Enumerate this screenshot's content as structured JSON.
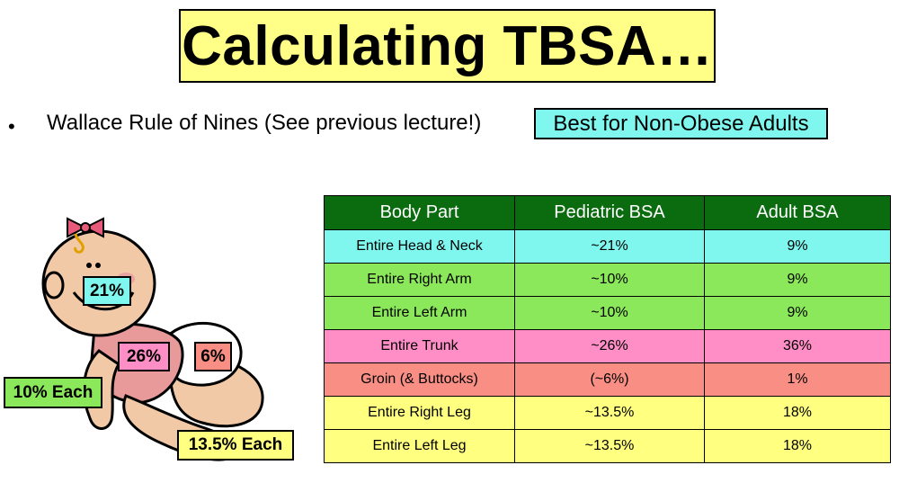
{
  "title": "Calculating TBSA…",
  "bullet": {
    "marker": "•",
    "text": "Wallace Rule of Nines (See previous lecture!)",
    "callout": "Best for Non-Obese Adults"
  },
  "figure": {
    "labels": {
      "head": "21%",
      "trunk": "26%",
      "groin": "6%",
      "arms": "10% Each",
      "legs": "13.5% Each"
    }
  },
  "table": {
    "headers": [
      "Body Part",
      "Pediatric BSA",
      "Adult BSA"
    ],
    "rows": [
      [
        "Entire Head & Neck",
        "~21%",
        "9%"
      ],
      [
        "Entire Right Arm",
        "~10%",
        "9%"
      ],
      [
        "Entire Left Arm",
        "~10%",
        "9%"
      ],
      [
        "Entire Trunk",
        "~26%",
        "36%"
      ],
      [
        "Groin (& Buttocks)",
        "(~6%)",
        "1%"
      ],
      [
        "Entire Right Leg",
        "~13.5%",
        "18%"
      ],
      [
        "Entire Left Leg",
        "~13.5%",
        "18%"
      ]
    ],
    "row_colors": [
      "#7ff7ee",
      "#8be85a",
      "#8be85a",
      "#ff8ec6",
      "#f98f84",
      "#ffff80",
      "#ffff80"
    ]
  },
  "colors": {
    "title_bg": "#ffff88",
    "callout_bg": "#7ff7ee",
    "header_bg": "#0b6b0f"
  }
}
